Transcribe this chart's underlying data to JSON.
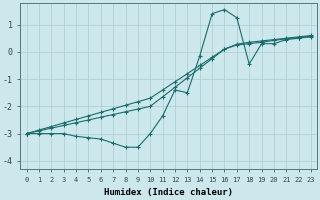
{
  "xlabel": "Humidex (Indice chaleur)",
  "ylabel": "",
  "background_color": "#cce8ec",
  "grid_color": "#aacccc",
  "line_color": "#1a6b6b",
  "xlim": [
    -0.5,
    23.5
  ],
  "ylim": [
    -4.3,
    1.8
  ],
  "xticks": [
    0,
    1,
    2,
    3,
    4,
    5,
    6,
    7,
    8,
    9,
    10,
    11,
    12,
    13,
    14,
    15,
    16,
    17,
    18,
    19,
    20,
    21,
    22,
    23
  ],
  "yticks": [
    -4,
    -3,
    -2,
    -1,
    0,
    1
  ],
  "line1_x": [
    0,
    1,
    2,
    3,
    4,
    5,
    6,
    7,
    8,
    9,
    10,
    11,
    12,
    13,
    14,
    15,
    16,
    17,
    18,
    19,
    20,
    21,
    22,
    23
  ],
  "line1_y": [
    -3.0,
    -3.0,
    -3.0,
    -3.0,
    -3.1,
    -3.15,
    -3.2,
    -3.35,
    -3.5,
    -3.5,
    -3.0,
    -2.35,
    -1.4,
    -1.5,
    -0.15,
    1.4,
    1.55,
    1.25,
    -0.45,
    0.3,
    0.3,
    0.45,
    0.5,
    0.55
  ],
  "line2_x": [
    0,
    1,
    2,
    3,
    4,
    5,
    6,
    7,
    8,
    9,
    10,
    11,
    12,
    13,
    14,
    15,
    16,
    17,
    18,
    19,
    20,
    21,
    22,
    23
  ],
  "line2_y": [
    -3.0,
    -2.87,
    -2.74,
    -2.61,
    -2.48,
    -2.35,
    -2.22,
    -2.09,
    -1.96,
    -1.83,
    -1.7,
    -1.4,
    -1.1,
    -0.8,
    -0.5,
    -0.2,
    0.1,
    0.25,
    0.3,
    0.35,
    0.42,
    0.48,
    0.52,
    0.57
  ],
  "line3_x": [
    0,
    1,
    2,
    3,
    4,
    5,
    6,
    7,
    8,
    9,
    10,
    11,
    12,
    13,
    14,
    15,
    16,
    17,
    18,
    19,
    20,
    21,
    22,
    23
  ],
  "line3_y": [
    -3.0,
    -2.9,
    -2.8,
    -2.7,
    -2.6,
    -2.5,
    -2.4,
    -2.3,
    -2.2,
    -2.1,
    -2.0,
    -1.65,
    -1.3,
    -0.95,
    -0.6,
    -0.25,
    0.1,
    0.28,
    0.35,
    0.4,
    0.45,
    0.5,
    0.55,
    0.6
  ]
}
